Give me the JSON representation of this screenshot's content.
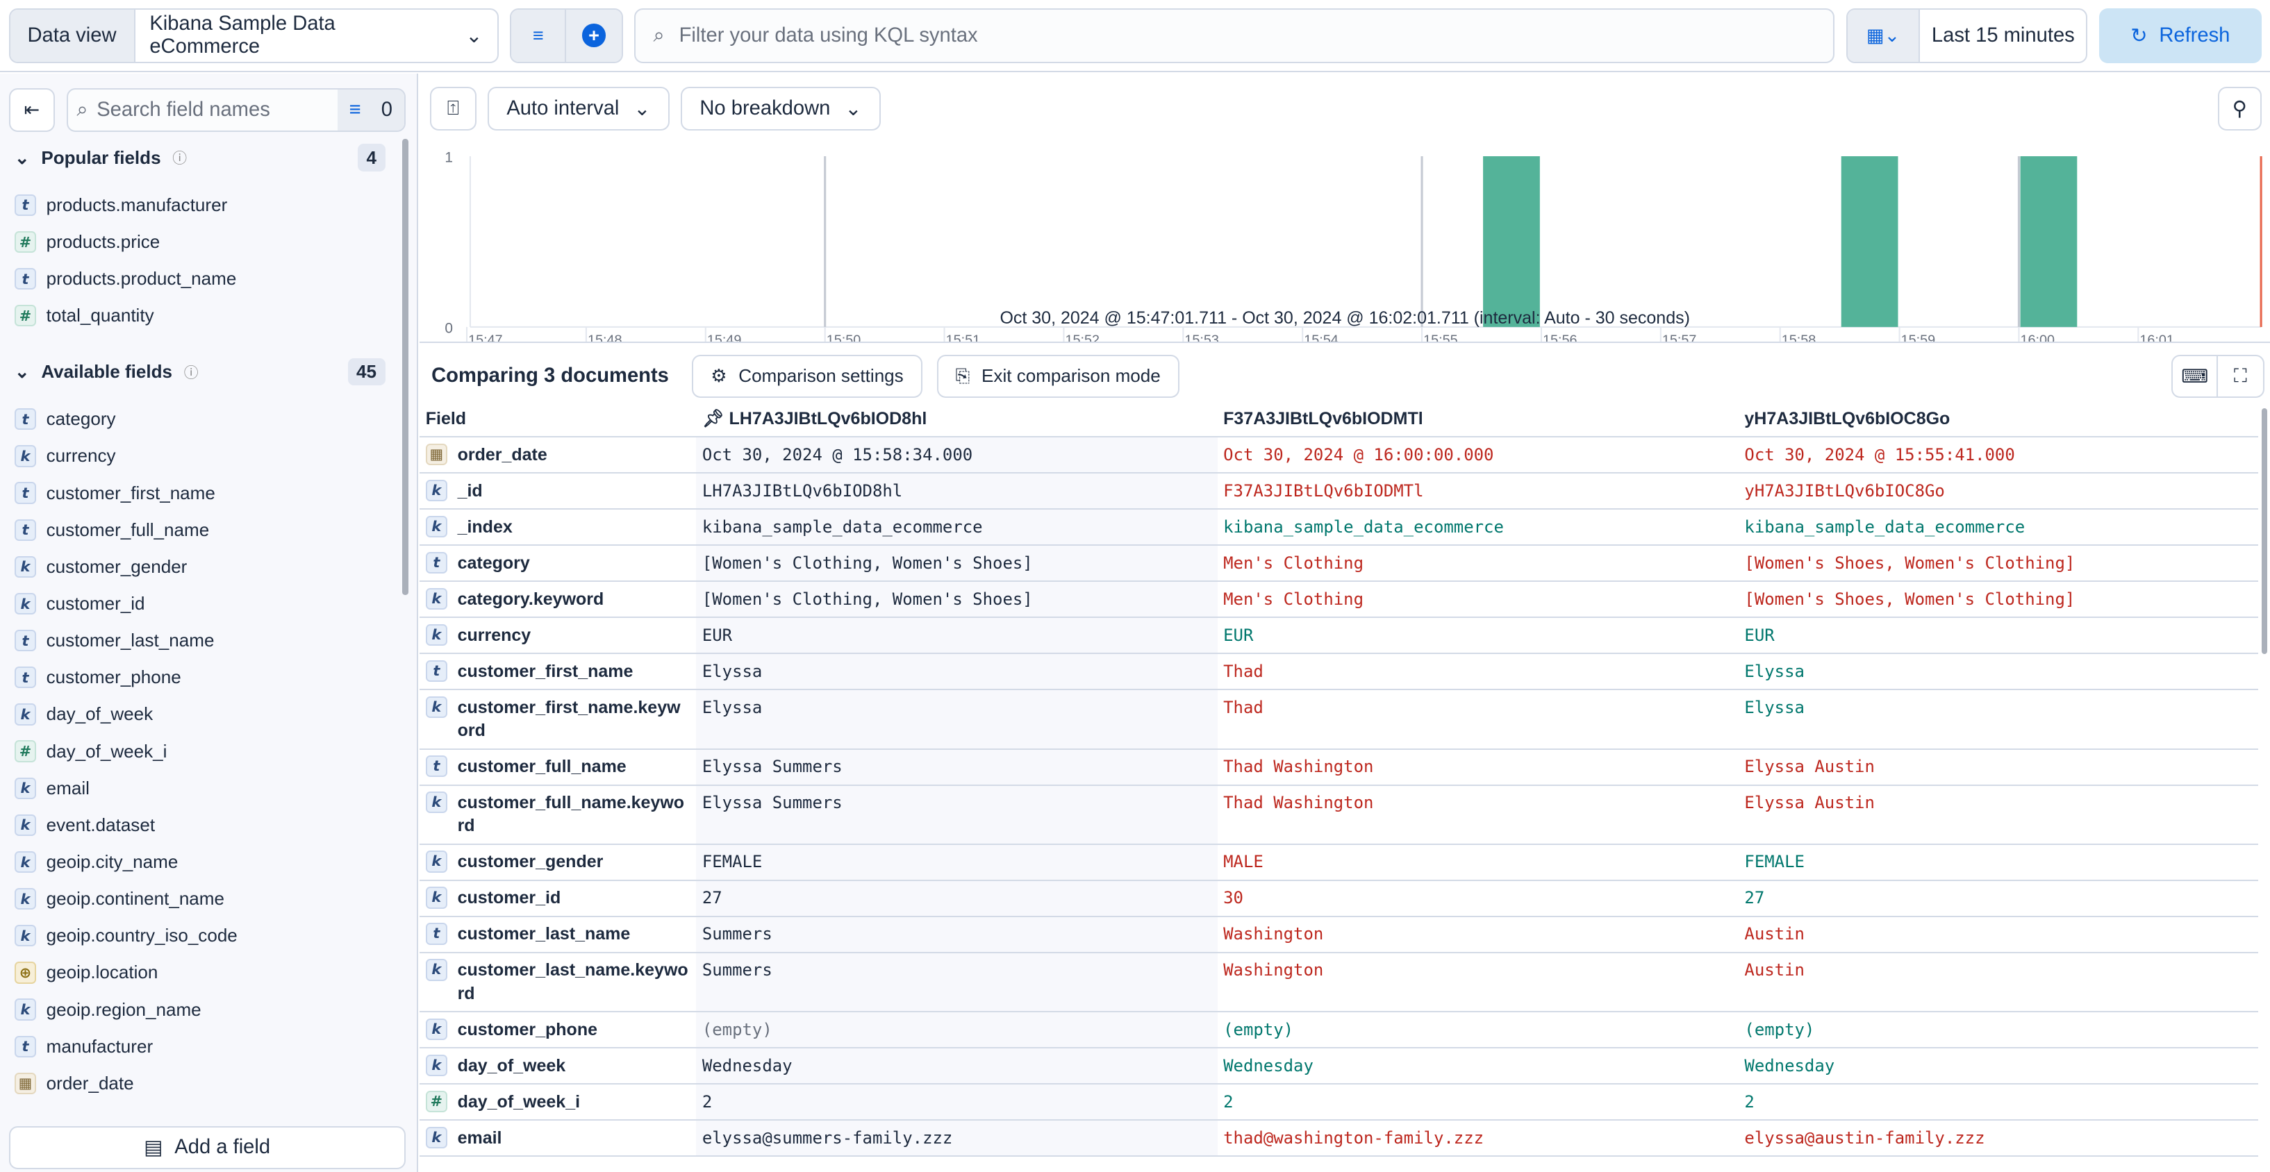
{
  "topbar": {
    "data_view_label": "Data view",
    "data_view_value": "Kibana Sample Data eCommerce",
    "search_placeholder": "Filter your data using KQL syntax",
    "time_range": "Last 15 minutes",
    "refresh_label": "Refresh"
  },
  "sidebar": {
    "search_placeholder": "Search field names",
    "filter_count": "0",
    "popular": {
      "title": "Popular fields",
      "count": "4",
      "items": [
        {
          "type": "t",
          "name": "products.manufacturer"
        },
        {
          "type": "#",
          "name": "products.price"
        },
        {
          "type": "t",
          "name": "products.product_name"
        },
        {
          "type": "#",
          "name": "total_quantity"
        }
      ]
    },
    "available": {
      "title": "Available fields",
      "count": "45",
      "items": [
        {
          "type": "t",
          "name": "category"
        },
        {
          "type": "k",
          "name": "currency"
        },
        {
          "type": "t",
          "name": "customer_first_name"
        },
        {
          "type": "t",
          "name": "customer_full_name"
        },
        {
          "type": "k",
          "name": "customer_gender"
        },
        {
          "type": "k",
          "name": "customer_id"
        },
        {
          "type": "t",
          "name": "customer_last_name"
        },
        {
          "type": "t",
          "name": "customer_phone"
        },
        {
          "type": "k",
          "name": "day_of_week"
        },
        {
          "type": "#",
          "name": "day_of_week_i"
        },
        {
          "type": "k",
          "name": "email"
        },
        {
          "type": "k",
          "name": "event.dataset"
        },
        {
          "type": "k",
          "name": "geoip.city_name"
        },
        {
          "type": "k",
          "name": "geoip.continent_name"
        },
        {
          "type": "k",
          "name": "geoip.country_iso_code"
        },
        {
          "type": "geo",
          "name": "geoip.location"
        },
        {
          "type": "k",
          "name": "geoip.region_name"
        },
        {
          "type": "t",
          "name": "manufacturer"
        },
        {
          "type": "date",
          "name": "order_date"
        }
      ]
    },
    "add_field_label": "Add a field"
  },
  "histogram": {
    "interval_label": "Auto interval",
    "breakdown_label": "No breakdown",
    "caption": "Oct 30, 2024 @ 15:47:01.711 - Oct 30, 2024 @ 16:02:01.711 (interval: Auto - 30 seconds)"
  },
  "chart_data": {
    "type": "bar",
    "x_ticks": [
      "15:47",
      "15:48",
      "15:49",
      "15:50",
      "15:51",
      "15:52",
      "15:53",
      "15:54",
      "15:55",
      "15:56",
      "15:57",
      "15:58",
      "15:59",
      "16:00",
      "16:01"
    ],
    "x_sublabel": "October 30, 2024",
    "y_ticks": [
      "0",
      "1"
    ],
    "ylim": [
      0,
      1
    ],
    "xlim": [
      "15:47:01.711",
      "16:02:01.711"
    ],
    "interval_seconds": 30,
    "bars": [
      {
        "start": "15:55:30",
        "count": 1
      },
      {
        "start": "15:58:30",
        "count": 1
      },
      {
        "start": "16:00:00",
        "count": 1
      }
    ],
    "bar_color": "#54b399"
  },
  "comparison": {
    "title": "Comparing 3 documents",
    "settings_label": "Comparison settings",
    "exit_label": "Exit comparison mode",
    "columns": [
      "Field",
      "LH7A3JIBtLQv6bIOD8hl",
      "F37A3JIBtLQv6bIODMTl",
      "yH7A3JIBtLQv6bIOC8Go"
    ],
    "rows": [
      {
        "type": "date",
        "field": "order_date",
        "values": [
          "Oct 30, 2024 @ 15:58:34.000",
          "Oct 30, 2024 @ 16:00:00.000",
          "Oct 30, 2024 @ 15:55:41.000"
        ],
        "diff": [
          "",
          "red",
          "red"
        ]
      },
      {
        "type": "k",
        "field": "_id",
        "values": [
          "LH7A3JIBtLQv6bIOD8hl",
          "F37A3JIBtLQv6bIODMTl",
          "yH7A3JIBtLQv6bIOC8Go"
        ],
        "diff": [
          "",
          "red",
          "red"
        ]
      },
      {
        "type": "k",
        "field": "_index",
        "values": [
          "kibana_sample_data_ecommerce",
          "kibana_sample_data_ecommerce",
          "kibana_sample_data_ecommerce"
        ],
        "diff": [
          "",
          "grn",
          "grn"
        ]
      },
      {
        "type": "t",
        "field": "category",
        "values": [
          "[Women's Clothing, Women's Shoes]",
          "Men's Clothing",
          "[Women's Shoes, Women's Clothing]"
        ],
        "diff": [
          "",
          "red",
          "red"
        ]
      },
      {
        "type": "k",
        "field": "category.keyword",
        "values": [
          "[Women's Clothing, Women's Shoes]",
          "Men's Clothing",
          "[Women's Shoes, Women's Clothing]"
        ],
        "diff": [
          "",
          "red",
          "red"
        ]
      },
      {
        "type": "k",
        "field": "currency",
        "values": [
          "EUR",
          "EUR",
          "EUR"
        ],
        "diff": [
          "",
          "grn",
          "grn"
        ]
      },
      {
        "type": "t",
        "field": "customer_first_name",
        "values": [
          "Elyssa",
          "Thad",
          "Elyssa"
        ],
        "diff": [
          "",
          "red",
          "grn"
        ]
      },
      {
        "type": "k",
        "field": "customer_first_name.keyword",
        "values": [
          "Elyssa",
          "Thad",
          "Elyssa"
        ],
        "diff": [
          "",
          "red",
          "grn"
        ]
      },
      {
        "type": "t",
        "field": "customer_full_name",
        "values": [
          "Elyssa Summers",
          "Thad Washington",
          "Elyssa Austin"
        ],
        "diff": [
          "",
          "red",
          "red"
        ]
      },
      {
        "type": "k",
        "field": "customer_full_name.keyword",
        "values": [
          "Elyssa Summers",
          "Thad Washington",
          "Elyssa Austin"
        ],
        "diff": [
          "",
          "red",
          "red"
        ]
      },
      {
        "type": "k",
        "field": "customer_gender",
        "values": [
          "FEMALE",
          "MALE",
          "FEMALE"
        ],
        "diff": [
          "",
          "red",
          "grn"
        ]
      },
      {
        "type": "k",
        "field": "customer_id",
        "values": [
          "27",
          "30",
          "27"
        ],
        "diff": [
          "",
          "red",
          "grn"
        ]
      },
      {
        "type": "t",
        "field": "customer_last_name",
        "values": [
          "Summers",
          "Washington",
          "Austin"
        ],
        "diff": [
          "",
          "red",
          "red"
        ]
      },
      {
        "type": "k",
        "field": "customer_last_name.keyword",
        "values": [
          "Summers",
          "Washington",
          "Austin"
        ],
        "diff": [
          "",
          "red",
          "red"
        ]
      },
      {
        "type": "k",
        "field": "customer_phone",
        "values": [
          "(empty)",
          "(empty)",
          "(empty)"
        ],
        "diff": [
          "dim",
          "grn",
          "grn"
        ]
      },
      {
        "type": "k",
        "field": "day_of_week",
        "values": [
          "Wednesday",
          "Wednesday",
          "Wednesday"
        ],
        "diff": [
          "",
          "grn",
          "grn"
        ]
      },
      {
        "type": "#",
        "field": "day_of_week_i",
        "values": [
          "2",
          "2",
          "2"
        ],
        "diff": [
          "",
          "grn",
          "grn"
        ]
      },
      {
        "type": "k",
        "field": "email",
        "values": [
          "elyssa@summers-family.zzz",
          "thad@washington-family.zzz",
          "elyssa@austin-family.zzz"
        ],
        "diff": [
          "",
          "red",
          "red"
        ]
      }
    ]
  },
  "colors": {
    "accent": "#0b64dd",
    "diff_removed": "#bd271e",
    "diff_equal": "#00776d",
    "bar": "#54b399"
  }
}
